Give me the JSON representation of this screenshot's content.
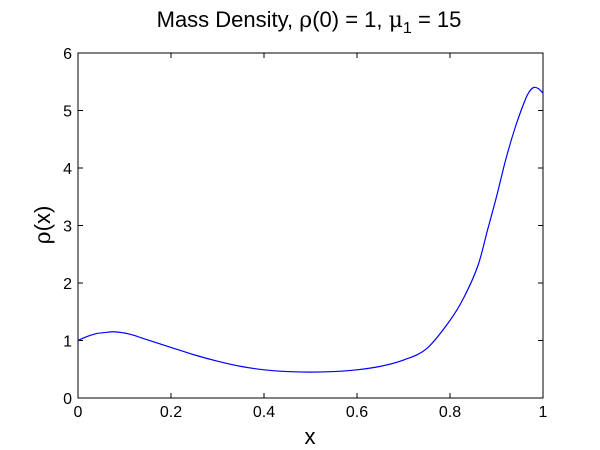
{
  "chart_data": {
    "type": "line",
    "title_parts": [
      "Mass Density, ",
      "ρ",
      "(0) = 1, ",
      "μ",
      "1",
      " = 15"
    ],
    "xlabel": "x",
    "ylabel_parts": [
      "ρ",
      "(x)"
    ],
    "xlim": [
      0,
      1
    ],
    "ylim": [
      0,
      6
    ],
    "xticks": [
      0,
      0.2,
      0.4,
      0.6,
      0.8,
      1
    ],
    "xtick_labels": [
      "0",
      "0.2",
      "0.4",
      "0.6",
      "0.8",
      "1"
    ],
    "yticks": [
      0,
      1,
      2,
      3,
      4,
      5,
      6
    ],
    "ytick_labels": [
      "0",
      "1",
      "2",
      "3",
      "4",
      "5",
      "6"
    ],
    "grid": false,
    "series": [
      {
        "color": "#0000ff",
        "x": [
          0,
          0.02,
          0.04,
          0.06,
          0.07,
          0.08,
          0.1,
          0.12,
          0.15,
          0.2,
          0.25,
          0.3,
          0.35,
          0.4,
          0.45,
          0.5,
          0.55,
          0.6,
          0.65,
          0.7,
          0.75,
          0.8,
          0.83,
          0.86,
          0.88,
          0.9,
          0.92,
          0.94,
          0.96,
          0.97,
          0.98,
          0.99,
          1.0
        ],
        "y": [
          1.0,
          1.07,
          1.12,
          1.14,
          1.15,
          1.15,
          1.13,
          1.09,
          1.01,
          0.88,
          0.75,
          0.64,
          0.55,
          0.49,
          0.46,
          0.45,
          0.46,
          0.49,
          0.55,
          0.66,
          0.86,
          1.35,
          1.75,
          2.3,
          2.9,
          3.5,
          4.15,
          4.7,
          5.15,
          5.32,
          5.4,
          5.38,
          5.3
        ]
      }
    ]
  }
}
